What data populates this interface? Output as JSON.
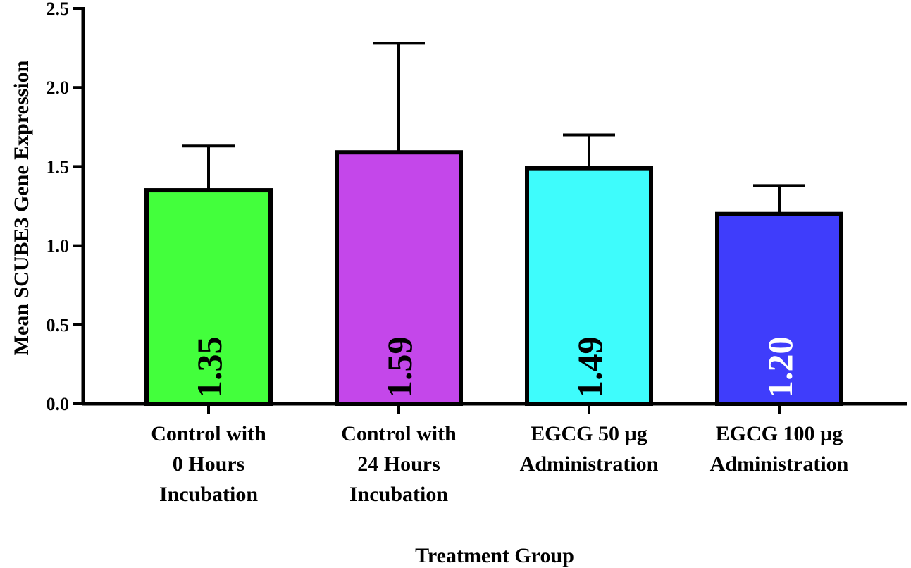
{
  "chart_data": {
    "type": "bar",
    "title": "",
    "xlabel": "Treatment Group",
    "ylabel": "Mean SCUBE3 Gene Expression",
    "ylim": [
      0,
      2.5
    ],
    "yticks": [
      0.0,
      0.5,
      1.0,
      1.5,
      2.0,
      2.5
    ],
    "ytick_labels": [
      "0.0",
      "0.5",
      "1.0",
      "1.5",
      "2.0",
      "2.5"
    ],
    "grid": false,
    "categories": [
      [
        "Control with",
        "0 Hours",
        "Incubation"
      ],
      [
        "Control with",
        "24 Hours",
        "Incubation"
      ],
      [
        "EGCG 50 µg",
        "Administration"
      ],
      [
        "EGCG 100 µg",
        "Administration"
      ]
    ],
    "values": [
      1.35,
      1.59,
      1.49,
      1.2
    ],
    "error_upper": [
      1.63,
      2.28,
      1.7,
      1.38
    ],
    "data_labels": [
      "1.35",
      "1.59",
      "1.49",
      "1.20"
    ],
    "colors": [
      "#43ff3c",
      "#c447ea",
      "#3efcfc",
      "#3f3dfb"
    ],
    "label_colors": [
      "#000000",
      "#000000",
      "#000000",
      "#ffffff"
    ]
  }
}
